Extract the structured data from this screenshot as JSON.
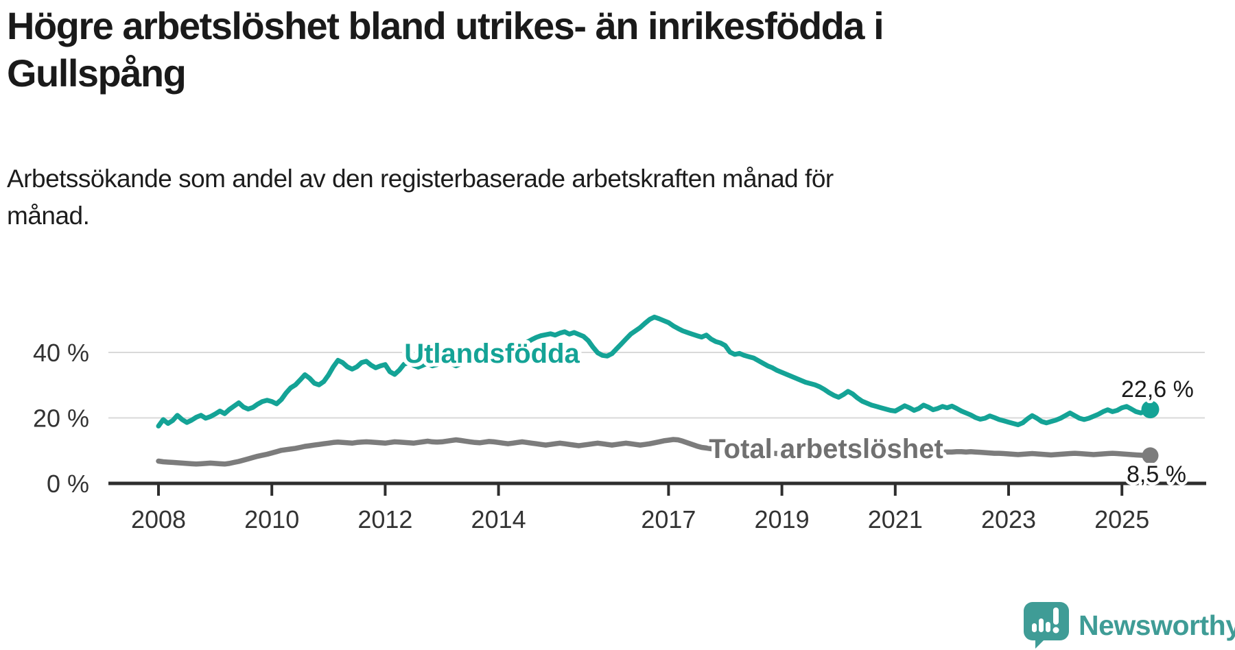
{
  "title": {
    "line1": "Högre arbetslöshet bland utrikes- än inrikesfödda i",
    "line2": "Gullspång"
  },
  "subtitle": {
    "line1": "Arbetssökande som andel av den registerbaserade arbetskraften månad för",
    "line2": "månad."
  },
  "branding": {
    "name": "Newsworthy",
    "color": "#3f9c96"
  },
  "colors": {
    "title_text": "#1a1a1a",
    "axis_text": "#333333",
    "axis_line": "#2e2e2e",
    "gridline": "#d9d9d9",
    "series_utlandsfodda": "#14a396",
    "series_total": "#7c7c7c",
    "total_label_gray": "#707070",
    "value_label": "#1a1a1a",
    "background": "#ffffff"
  },
  "chart_data": {
    "type": "line",
    "title": "Högre arbetslöshet bland utrikes- än inrikesfödda i Gullspång",
    "subtitle": "Arbetssökande som andel av den registerbaserade arbetskraften månad för månad.",
    "xlabel": "",
    "ylabel": "",
    "grid": "horizontal",
    "x_start_year": 2008,
    "x_frequency": "monthly",
    "x_end": "2025-07",
    "ylim": [
      0,
      52
    ],
    "y_ticks": [
      {
        "value": 0,
        "label": "0 %"
      },
      {
        "value": 20,
        "label": "20 %"
      },
      {
        "value": 40,
        "label": "40 %"
      }
    ],
    "x_ticks": [
      {
        "year": 2008,
        "label": "2008"
      },
      {
        "year": 2010,
        "label": "2010"
      },
      {
        "year": 2012,
        "label": "2012"
      },
      {
        "year": 2014,
        "label": "2014"
      },
      {
        "year": 2017,
        "label": "2017"
      },
      {
        "year": 2019,
        "label": "2019"
      },
      {
        "year": 2021,
        "label": "2021"
      },
      {
        "year": 2023,
        "label": "2023"
      },
      {
        "year": 2025,
        "label": "2025"
      }
    ],
    "series": [
      {
        "name": "Utlandsfödda",
        "color": "#14a396",
        "end_label": "22,6 %",
        "end_value": 22.6,
        "values": [
          17.5,
          19.5,
          18.3,
          19.2,
          20.8,
          19.5,
          18.6,
          19.3,
          20.2,
          20.8,
          19.9,
          20.4,
          21.2,
          22.1,
          21.3,
          22.6,
          23.6,
          24.6,
          23.3,
          22.7,
          23.2,
          24.2,
          25.0,
          25.4,
          25.0,
          24.3,
          25.6,
          27.6,
          29.2,
          30.1,
          31.6,
          33.2,
          32.1,
          30.6,
          30.1,
          31.1,
          33.1,
          35.6,
          37.6,
          36.9,
          35.6,
          34.9,
          35.6,
          36.9,
          37.3,
          36.1,
          35.3,
          35.9,
          36.3,
          34.1,
          33.3,
          34.6,
          36.4,
          36.9,
          36.1,
          35.5,
          36.1,
          36.7,
          35.9,
          36.3,
          36.9,
          37.4,
          36.6,
          35.9,
          36.5,
          37.1,
          37.9,
          37.3,
          36.7,
          37.0,
          37.5,
          38.1,
          38.6,
          39.3,
          40.1,
          40.9,
          41.6,
          42.4,
          43.1,
          43.9,
          44.6,
          45.1,
          45.4,
          45.7,
          45.3,
          45.9,
          46.3,
          45.6,
          46.1,
          45.5,
          44.9,
          43.6,
          41.6,
          39.9,
          39.1,
          38.9,
          39.6,
          41.1,
          42.6,
          44.1,
          45.6,
          46.6,
          47.6,
          48.9,
          50.1,
          50.8,
          50.3,
          49.7,
          49.1,
          48.1,
          47.3,
          46.6,
          46.1,
          45.6,
          45.1,
          44.7,
          45.3,
          44.1,
          43.3,
          42.9,
          42.1,
          40.1,
          39.4,
          39.7,
          39.1,
          38.7,
          38.3,
          37.5,
          36.7,
          35.9,
          35.3,
          34.5,
          33.9,
          33.3,
          32.7,
          32.1,
          31.5,
          30.9,
          30.5,
          30.1,
          29.5,
          28.7,
          27.7,
          26.9,
          26.3,
          27.1,
          28.1,
          27.3,
          26.1,
          25.1,
          24.5,
          23.9,
          23.5,
          23.1,
          22.7,
          22.3,
          22.1,
          22.9,
          23.7,
          23.1,
          22.3,
          22.9,
          23.9,
          23.3,
          22.5,
          22.9,
          23.5,
          23.1,
          23.6,
          22.9,
          22.1,
          21.5,
          20.9,
          20.1,
          19.6,
          19.9,
          20.6,
          20.1,
          19.5,
          19.1,
          18.7,
          18.3,
          17.9,
          18.5,
          19.7,
          20.7,
          19.9,
          18.9,
          18.5,
          18.9,
          19.3,
          19.9,
          20.7,
          21.5,
          20.7,
          19.9,
          19.5,
          19.9,
          20.5,
          21.1,
          21.9,
          22.5,
          21.9,
          22.3,
          23.1,
          23.5,
          22.7,
          21.9,
          21.5,
          22.1,
          22.6
        ]
      },
      {
        "name": "Total arbetslöshet",
        "color": "#7c7c7c",
        "end_label": "8,5 %",
        "end_value": 8.5,
        "values": [
          6.8,
          6.6,
          6.5,
          6.4,
          6.3,
          6.2,
          6.1,
          6.0,
          5.9,
          6.0,
          6.1,
          6.2,
          6.1,
          6.0,
          5.9,
          6.1,
          6.4,
          6.7,
          7.1,
          7.5,
          7.9,
          8.3,
          8.6,
          8.9,
          9.3,
          9.7,
          10.1,
          10.3,
          10.5,
          10.7,
          11.0,
          11.3,
          11.5,
          11.7,
          11.9,
          12.1,
          12.3,
          12.5,
          12.6,
          12.5,
          12.4,
          12.3,
          12.5,
          12.6,
          12.7,
          12.6,
          12.5,
          12.4,
          12.3,
          12.5,
          12.7,
          12.6,
          12.5,
          12.4,
          12.3,
          12.5,
          12.7,
          12.9,
          12.7,
          12.6,
          12.7,
          12.9,
          13.1,
          13.3,
          13.1,
          12.9,
          12.7,
          12.5,
          12.4,
          12.6,
          12.8,
          12.7,
          12.5,
          12.3,
          12.1,
          12.3,
          12.5,
          12.7,
          12.5,
          12.3,
          12.1,
          11.9,
          11.7,
          11.9,
          12.1,
          12.3,
          12.1,
          11.9,
          11.7,
          11.5,
          11.7,
          11.9,
          12.1,
          12.3,
          12.1,
          11.9,
          11.7,
          11.9,
          12.1,
          12.3,
          12.1,
          11.9,
          11.7,
          11.9,
          12.1,
          12.4,
          12.7,
          13.0,
          13.2,
          13.4,
          13.3,
          12.9,
          12.4,
          11.9,
          11.4,
          11.0,
          10.8,
          10.6,
          10.4,
          10.2,
          10.1,
          10.0,
          9.9,
          9.8,
          9.7,
          9.6,
          9.5,
          9.4,
          9.4,
          9.3,
          9.2,
          9.1,
          9.0,
          9.0,
          8.9,
          8.9,
          8.8,
          8.8,
          8.8,
          8.8,
          8.9,
          9.0,
          9.1,
          9.2,
          9.4,
          9.6,
          10.1,
          10.6,
          10.9,
          11.1,
          11.1,
          11.0,
          10.8,
          10.6,
          10.4,
          10.2,
          10.0,
          10.0,
          9.9,
          9.9,
          9.8,
          9.8,
          9.8,
          9.7,
          9.7,
          9.7,
          9.6,
          9.6,
          9.6,
          9.7,
          9.7,
          9.6,
          9.7,
          9.6,
          9.5,
          9.4,
          9.3,
          9.2,
          9.2,
          9.1,
          9.0,
          8.9,
          8.8,
          8.9,
          9.0,
          9.1,
          9.0,
          8.9,
          8.8,
          8.7,
          8.8,
          8.9,
          9.0,
          9.1,
          9.2,
          9.1,
          9.0,
          8.9,
          8.8,
          8.9,
          9.0,
          9.1,
          9.2,
          9.1,
          9.0,
          8.9,
          8.8,
          8.7,
          8.6,
          8.5,
          8.5
        ]
      }
    ],
    "legend_position": "inline-labels"
  }
}
